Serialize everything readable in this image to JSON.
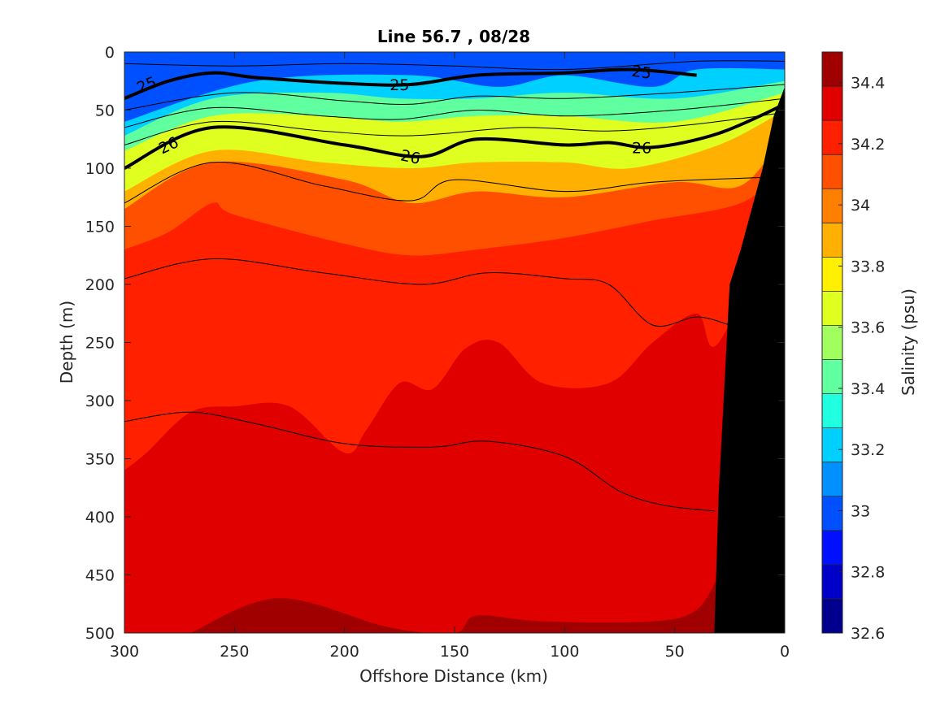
{
  "chart_data": {
    "type": "filled-contour",
    "title": "Line 56.7 , 08/28",
    "xlabel": "Offshore Distance (km)",
    "ylabel": "Depth (m)",
    "xlim": [
      300,
      0
    ],
    "ylim": [
      0,
      500
    ],
    "x_reversed": true,
    "y_reversed": true,
    "xticks": [
      300,
      250,
      200,
      150,
      100,
      50,
      0
    ],
    "yticks": [
      0,
      50,
      100,
      150,
      200,
      250,
      300,
      350,
      400,
      450,
      500
    ],
    "colorbar": {
      "label": "Salinity (psu)",
      "range": [
        32.6,
        34.5
      ],
      "step": 0.1,
      "ticks": [
        32.6,
        32.8,
        33.0,
        33.2,
        33.4,
        33.6,
        33.8,
        34.0,
        34.2,
        34.4
      ],
      "tick_labels": [
        "32.6",
        "32.8",
        "33",
        "33.2",
        "33.4",
        "33.6",
        "33.8",
        "34",
        "34.2",
        "34.4"
      ],
      "colors": [
        "#00008f",
        "#0000c8",
        "#0010ff",
        "#0050ff",
        "#0090ff",
        "#00d0ff",
        "#20ffdf",
        "#60ff9f",
        "#a0ff5f",
        "#dfff20",
        "#ffef00",
        "#ffb000",
        "#ff8000",
        "#ff5000",
        "#ff2000",
        "#e00000",
        "#a00000"
      ],
      "colormap": "jet"
    },
    "salinity_layers": [
      {
        "salinity": 32.9,
        "depths": [
          [
            0,
            30
          ],
          [
            60,
            20
          ],
          [
            130,
            20
          ],
          [
            200,
            10
          ],
          [
            240,
            15
          ],
          [
            300,
            50
          ]
        ]
      },
      {
        "salinity": 33.1,
        "depths": [
          [
            0,
            15
          ],
          [
            40,
            15
          ],
          [
            60,
            30
          ],
          [
            100,
            20
          ],
          [
            130,
            30
          ],
          [
            170,
            20
          ],
          [
            240,
            25
          ],
          [
            300,
            60
          ]
        ]
      },
      {
        "salinity": 33.3,
        "depths": [
          [
            0,
            25
          ],
          [
            50,
            40
          ],
          [
            100,
            35
          ],
          [
            140,
            40
          ],
          [
            175,
            40
          ],
          [
            210,
            35
          ],
          [
            260,
            40
          ],
          [
            300,
            72
          ]
        ]
      },
      {
        "salinity": 33.5,
        "depths": [
          [
            0,
            35
          ],
          [
            50,
            60
          ],
          [
            100,
            55
          ],
          [
            140,
            55
          ],
          [
            175,
            60
          ],
          [
            210,
            55
          ],
          [
            260,
            55
          ],
          [
            300,
            85
          ]
        ]
      },
      {
        "salinity": 33.7,
        "depths": [
          [
            0,
            50
          ],
          [
            30,
            80
          ],
          [
            70,
            100
          ],
          [
            100,
            95
          ],
          [
            140,
            95
          ],
          [
            170,
            100
          ],
          [
            210,
            95
          ],
          [
            260,
            85
          ],
          [
            300,
            120
          ]
        ]
      },
      {
        "salinity": 33.9,
        "depths": [
          [
            0,
            70
          ],
          [
            20,
            115
          ],
          [
            50,
            112
          ],
          [
            100,
            125
          ],
          [
            140,
            120
          ],
          [
            170,
            130
          ],
          [
            200,
            110
          ],
          [
            260,
            95
          ],
          [
            300,
            135
          ]
        ]
      },
      {
        "salinity": 34.0,
        "depths": [
          [
            0,
            100
          ],
          [
            20,
            130
          ],
          [
            60,
            145
          ],
          [
            100,
            160
          ],
          [
            140,
            170
          ],
          [
            170,
            175
          ],
          [
            200,
            165
          ],
          [
            250,
            140
          ],
          [
            260,
            130
          ],
          [
            280,
            155
          ],
          [
            300,
            170
          ]
        ]
      },
      {
        "salinity": 34.1,
        "depths": [
          [
            0,
            130
          ],
          [
            30,
            250
          ],
          [
            40,
            225
          ],
          [
            60,
            250
          ],
          [
            80,
            285
          ],
          [
            110,
            285
          ],
          [
            130,
            250
          ],
          [
            145,
            255
          ],
          [
            160,
            290
          ],
          [
            175,
            285
          ],
          [
            190,
            325
          ],
          [
            200,
            345
          ],
          [
            225,
            305
          ],
          [
            250,
            305
          ],
          [
            270,
            310
          ],
          [
            290,
            345
          ],
          [
            300,
            360
          ]
        ]
      },
      {
        "salinity": 34.3,
        "depths": [
          [
            30,
            450
          ],
          [
            40,
            480
          ],
          [
            60,
            490
          ],
          [
            110,
            490
          ],
          [
            140,
            485
          ],
          [
            150,
            500
          ],
          [
            180,
            495
          ],
          [
            230,
            470
          ],
          [
            270,
            500
          ]
        ]
      }
    ],
    "density_contours": [
      {
        "sigma": 24.8,
        "labeled": false,
        "depths": [
          [
            0,
            8
          ],
          [
            40,
            8
          ],
          [
            100,
            15
          ],
          [
            150,
            12
          ],
          [
            200,
            10
          ],
          [
            250,
            12
          ],
          [
            300,
            10
          ]
        ]
      },
      {
        "sigma": 25.0,
        "labeled": true,
        "label": "25",
        "depths": [
          [
            40,
            20
          ],
          [
            70,
            15
          ],
          [
            100,
            18
          ],
          [
            140,
            20
          ],
          [
            170,
            28
          ],
          [
            200,
            27
          ],
          [
            240,
            22
          ],
          [
            260,
            18
          ],
          [
            280,
            25
          ],
          [
            300,
            40
          ]
        ]
      },
      {
        "sigma": 25.25,
        "labeled": false,
        "depths": [
          [
            0,
            28
          ],
          [
            50,
            35
          ],
          [
            100,
            40
          ],
          [
            140,
            38
          ],
          [
            170,
            45
          ],
          [
            200,
            42
          ],
          [
            250,
            35
          ],
          [
            300,
            50
          ]
        ]
      },
      {
        "sigma": 25.5,
        "labeled": false,
        "depths": [
          [
            0,
            40
          ],
          [
            50,
            50
          ],
          [
            100,
            55
          ],
          [
            140,
            50
          ],
          [
            175,
            58
          ],
          [
            210,
            55
          ],
          [
            260,
            48
          ],
          [
            300,
            65
          ]
        ]
      },
      {
        "sigma": 25.75,
        "labeled": false,
        "depths": [
          [
            0,
            52
          ],
          [
            40,
            62
          ],
          [
            80,
            68
          ],
          [
            120,
            65
          ],
          [
            170,
            72
          ],
          [
            210,
            68
          ],
          [
            260,
            60
          ],
          [
            300,
            80
          ]
        ]
      },
      {
        "sigma": 26.0,
        "labeled": true,
        "label": "26",
        "depths": [
          [
            0,
            45
          ],
          [
            30,
            70
          ],
          [
            60,
            82
          ],
          [
            80,
            78
          ],
          [
            100,
            80
          ],
          [
            140,
            75
          ],
          [
            165,
            90
          ],
          [
            200,
            80
          ],
          [
            260,
            65
          ],
          [
            300,
            100
          ]
        ]
      },
      {
        "sigma": 26.25,
        "labeled": false,
        "depths": [
          [
            10,
            108
          ],
          [
            60,
            112
          ],
          [
            100,
            120
          ],
          [
            150,
            110
          ],
          [
            170,
            128
          ],
          [
            210,
            115
          ],
          [
            260,
            95
          ],
          [
            300,
            130
          ]
        ]
      },
      {
        "sigma": 26.5,
        "labeled": false,
        "depths": [
          [
            25,
            235
          ],
          [
            40,
            228
          ],
          [
            60,
            235
          ],
          [
            80,
            200
          ],
          [
            100,
            195
          ],
          [
            135,
            190
          ],
          [
            165,
            200
          ],
          [
            210,
            190
          ],
          [
            260,
            178
          ],
          [
            300,
            195
          ]
        ]
      },
      {
        "sigma": 26.75,
        "labeled": false,
        "depths": [
          [
            32,
            395
          ],
          [
            55,
            390
          ],
          [
            75,
            378
          ],
          [
            100,
            348
          ],
          [
            135,
            335
          ],
          [
            160,
            340
          ],
          [
            200,
            337
          ],
          [
            240,
            320
          ],
          [
            270,
            310
          ],
          [
            300,
            318
          ]
        ]
      }
    ],
    "bottom_bathymetry": [
      [
        0,
        30
      ],
      [
        5,
        55
      ],
      [
        10,
        100
      ],
      [
        20,
        170
      ],
      [
        25,
        200
      ],
      [
        30,
        380
      ],
      [
        32,
        500
      ],
      [
        0,
        500
      ]
    ]
  }
}
